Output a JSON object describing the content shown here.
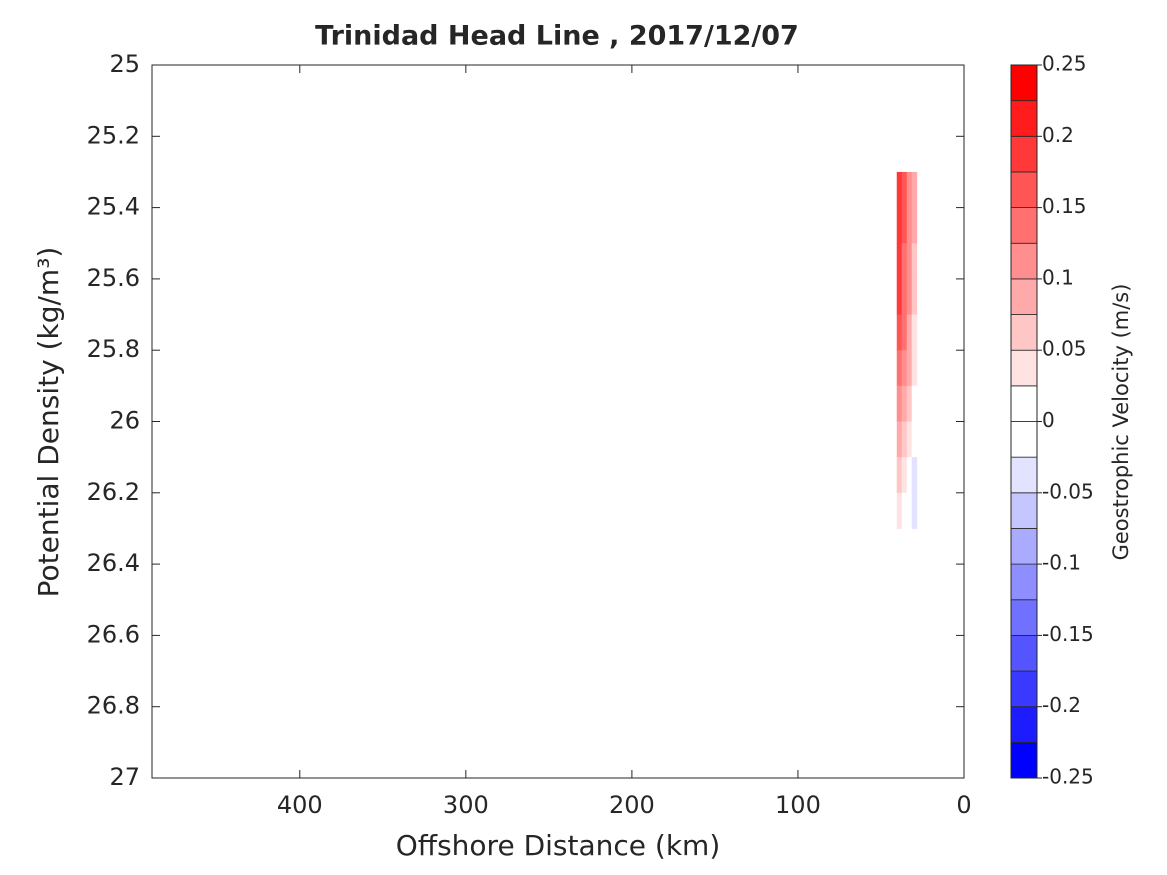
{
  "chart_data": {
    "type": "contour",
    "title": "Trinidad Head Line , 2017/12/07",
    "xlabel": "Offshore Distance (km)",
    "ylabel": "Potential Density (kg/m³)",
    "xlim": [
      0,
      489
    ],
    "x_direction": "reverse",
    "xticks": [
      0,
      100,
      200,
      300,
      400
    ],
    "ylim": [
      25,
      27
    ],
    "y_direction": "reverse",
    "yticks": [
      25,
      25.2,
      25.4,
      25.6,
      25.8,
      26,
      26.2,
      26.4,
      26.6,
      26.8,
      27
    ],
    "x": [
      39,
      36,
      33,
      30
    ],
    "y": [
      25.35,
      25.45,
      25.55,
      25.65,
      25.75,
      25.85,
      25.95,
      26.05,
      26.15,
      26.25
    ],
    "z": [
      [
        0.19,
        0.16,
        0.12,
        0.08
      ],
      [
        0.19,
        0.16,
        0.12,
        0.08
      ],
      [
        0.18,
        0.15,
        0.11,
        0.07
      ],
      [
        0.18,
        0.15,
        0.11,
        0.06
      ],
      [
        0.17,
        0.14,
        0.1,
        0.05
      ],
      [
        0.15,
        0.12,
        0.08,
        0.04
      ],
      [
        0.12,
        0.09,
        0.06,
        0.02
      ],
      [
        0.09,
        0.06,
        0.03,
        -0.01
      ],
      [
        0.06,
        0.03,
        0.0,
        -0.04
      ],
      [
        0.03,
        0.01,
        -0.01,
        -0.03
      ]
    ],
    "colorbar": {
      "label": "Geostrophic Velocity (m/s)",
      "clim": [
        -0.25,
        0.25
      ],
      "ticks": [
        -0.25,
        -0.2,
        -0.15,
        -0.1,
        -0.05,
        0,
        0.05,
        0.1,
        0.15,
        0.2,
        0.25
      ],
      "levels": [
        -0.25,
        -0.225,
        -0.2,
        -0.175,
        -0.15,
        -0.125,
        -0.1,
        -0.075,
        -0.05,
        -0.025,
        0,
        0.025,
        0.05,
        0.075,
        0.1,
        0.125,
        0.15,
        0.175,
        0.2,
        0.225,
        0.25
      ],
      "colormap": [
        "#0000ff",
        "#ffffff",
        "#ff0000"
      ]
    }
  }
}
